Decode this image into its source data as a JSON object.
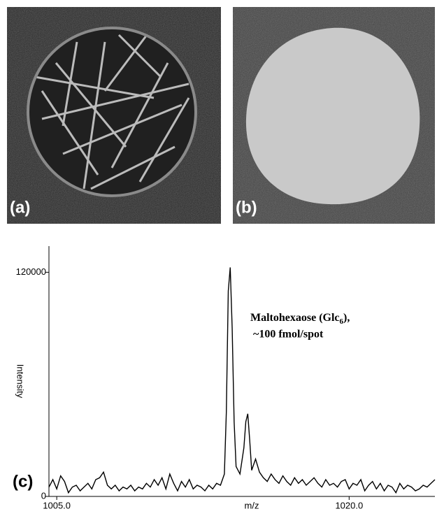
{
  "panels": [
    {
      "label": "(a)"
    },
    {
      "label": "(b)"
    }
  ],
  "chart_data": {
    "type": "line",
    "panel_label": "(c)",
    "x_label": "m/z",
    "y_label": "Intensity",
    "annotation": {
      "text": "Maltohexaose (Glc",
      "subscript": "6",
      "suffix": "),",
      "line2": "~100 fmol/spot"
    },
    "color": "#000000",
    "x": [
      1004.6,
      1004.8,
      1005.0,
      1005.2,
      1005.4,
      1005.6,
      1005.8,
      1006.0,
      1006.2,
      1006.4,
      1006.6,
      1006.8,
      1007.0,
      1007.2,
      1007.4,
      1007.6,
      1007.8,
      1008.0,
      1008.2,
      1008.4,
      1008.6,
      1008.8,
      1009.0,
      1009.2,
      1009.4,
      1009.6,
      1009.8,
      1010.0,
      1010.2,
      1010.4,
      1010.6,
      1010.8,
      1011.0,
      1011.2,
      1011.4,
      1011.6,
      1011.8,
      1012.0,
      1012.2,
      1012.4,
      1012.6,
      1012.8,
      1013.0,
      1013.2,
      1013.4,
      1013.6,
      1013.7,
      1013.8,
      1013.9,
      1014.0,
      1014.1,
      1014.2,
      1014.4,
      1014.6,
      1014.7,
      1014.8,
      1014.9,
      1015.0,
      1015.2,
      1015.4,
      1015.6,
      1015.8,
      1016.0,
      1016.2,
      1016.4,
      1016.6,
      1016.8,
      1017.0,
      1017.2,
      1017.4,
      1017.6,
      1017.8,
      1018.0,
      1018.2,
      1018.4,
      1018.6,
      1018.8,
      1019.0,
      1019.2,
      1019.4,
      1019.6,
      1019.8,
      1020.0,
      1020.2,
      1020.4,
      1020.6,
      1020.8,
      1021.0,
      1021.2,
      1021.4,
      1021.6,
      1021.8,
      1022.0,
      1022.2,
      1022.4,
      1022.6,
      1022.8,
      1023.0,
      1023.2,
      1023.4,
      1023.6,
      1023.8,
      1024.0,
      1024.2,
      1024.4
    ],
    "values": [
      5000,
      9000,
      4000,
      11000,
      8000,
      2000,
      5000,
      6000,
      3000,
      5000,
      7000,
      4000,
      9000,
      10000,
      13000,
      6000,
      4000,
      6000,
      3000,
      5000,
      4000,
      6000,
      3000,
      5000,
      4000,
      7000,
      5000,
      9000,
      6000,
      10000,
      4000,
      12000,
      7000,
      3000,
      8000,
      5000,
      9000,
      4000,
      6000,
      5000,
      3000,
      6000,
      4000,
      7000,
      6000,
      12000,
      45000,
      110000,
      122600,
      90000,
      40000,
      16000,
      12000,
      26000,
      40000,
      44250,
      30000,
      14000,
      20000,
      13000,
      10000,
      8000,
      12000,
      9000,
      7000,
      11000,
      8000,
      6000,
      10000,
      7000,
      9000,
      6000,
      8000,
      10000,
      7000,
      5000,
      9000,
      6000,
      7000,
      5000,
      8000,
      9000,
      4000,
      7000,
      6000,
      9000,
      3000,
      6000,
      8000,
      4000,
      7000,
      3000,
      6000,
      5000,
      2000,
      7000,
      4000,
      6000,
      5000,
      3000,
      4000,
      6000,
      5000,
      7000,
      9000
    ],
    "xlim": [
      1004.6,
      1024.4
    ],
    "xticks": [
      {
        "value": 1005,
        "label": "1005.0"
      },
      {
        "value": 1020,
        "label": "1020.0"
      }
    ],
    "ylim": [
      0,
      134000
    ],
    "yticks": [
      0,
      120000
    ],
    "grid": false
  }
}
